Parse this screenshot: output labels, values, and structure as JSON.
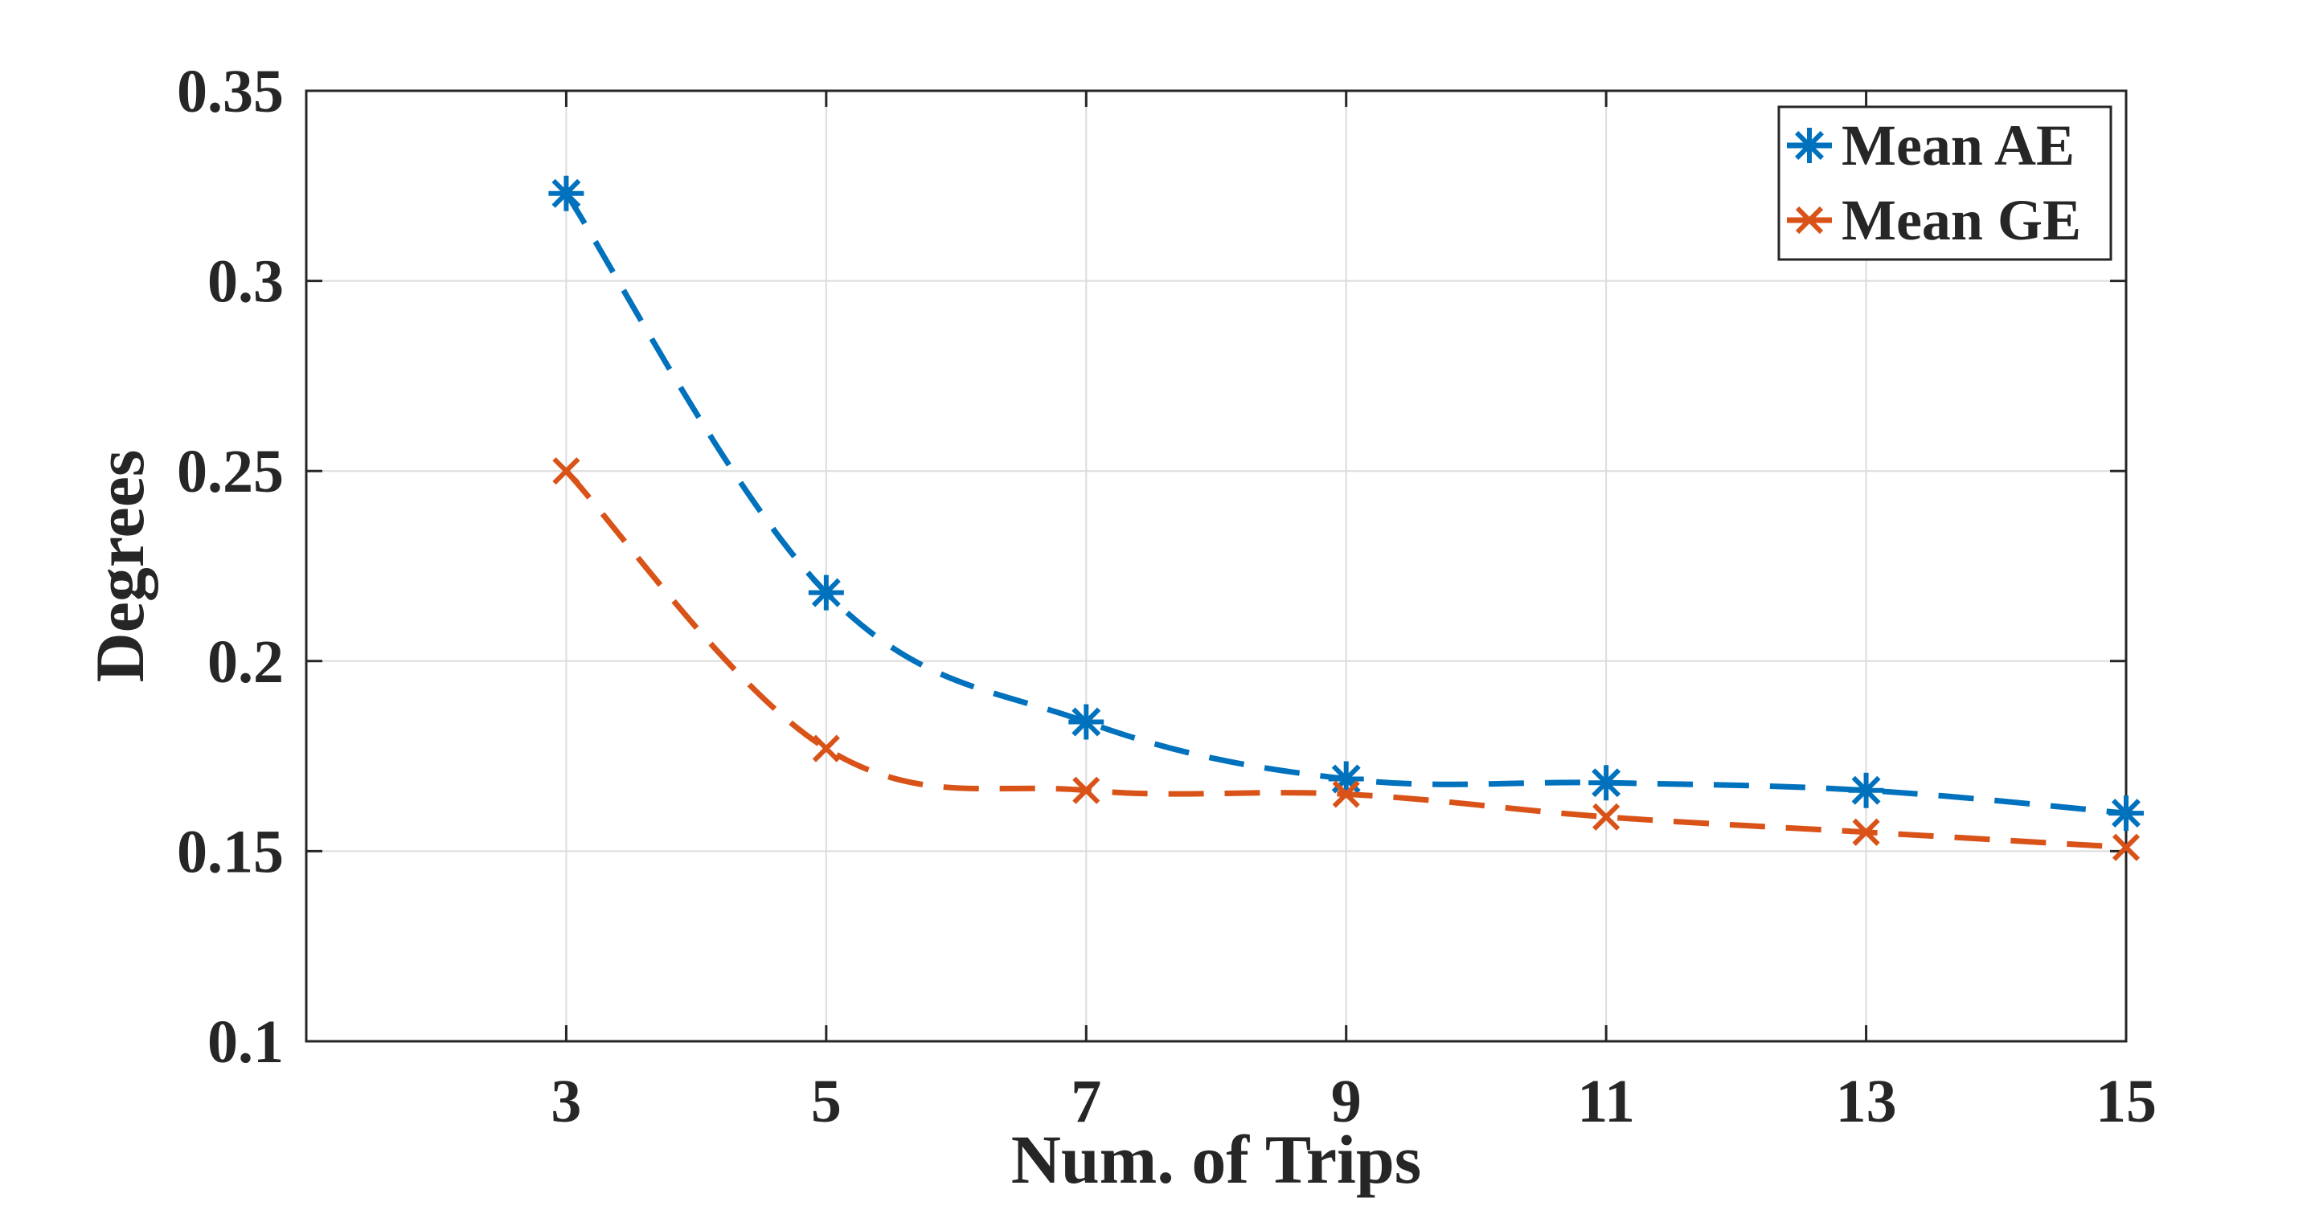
{
  "chart_data": {
    "type": "line",
    "title": "",
    "xlabel": "Num. of Trips",
    "ylabel": "Degrees",
    "x": [
      3,
      5,
      7,
      9,
      11,
      13,
      15
    ],
    "xlim": [
      1,
      15.0
    ],
    "ylim": [
      0.1,
      0.35
    ],
    "xticks": [
      "3",
      "5",
      "7",
      "9",
      "11",
      "13",
      "15"
    ],
    "yticks": [
      "0.1",
      "0.15",
      "0.2",
      "0.25",
      "0.3",
      "0.35"
    ],
    "grid": true,
    "legend_position": "top-right",
    "series": [
      {
        "name": "Mean AE",
        "marker": "asterisk",
        "line_style": "dashed",
        "color": "#0072BD",
        "values": [
          0.323,
          0.218,
          0.184,
          0.169,
          0.168,
          0.166,
          0.16
        ]
      },
      {
        "name": "Mean GE",
        "marker": "x",
        "line_style": "dashed",
        "color": "#D95319",
        "values": [
          0.25,
          0.177,
          0.166,
          0.165,
          0.159,
          0.155,
          0.151
        ]
      }
    ]
  }
}
